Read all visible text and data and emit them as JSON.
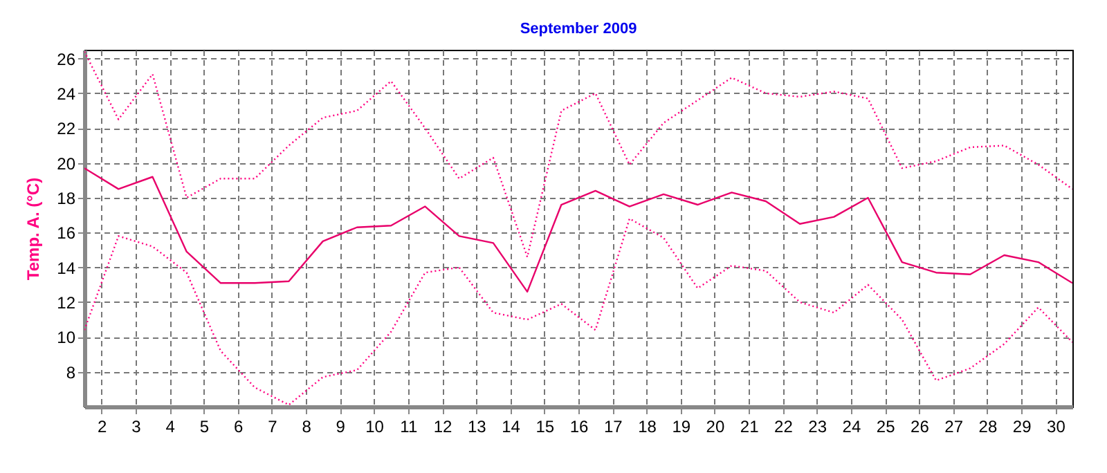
{
  "chart_data": {
    "type": "line",
    "title": "September 2009",
    "ylabel": "Temp. A. (°C)",
    "x": [
      1.5,
      2.5,
      3.5,
      4.5,
      5.5,
      6.5,
      7.5,
      8.5,
      9.5,
      10.5,
      11.5,
      12.5,
      13.5,
      14.5,
      15.5,
      16.5,
      17.5,
      18.5,
      19.5,
      20.5,
      21.5,
      22.5,
      23.5,
      24.5,
      25.5,
      26.5,
      27.5,
      28.5,
      29.5,
      30.5
    ],
    "series": [
      {
        "color": "#ff0080",
        "line_style": "dotted",
        "values": [
          26.4,
          22.5,
          25.1,
          18.0,
          19.1,
          19.1,
          21.0,
          22.6,
          23.0,
          24.7,
          22.0,
          19.1,
          20.3,
          14.6,
          23.0,
          24.0,
          19.9,
          22.3,
          23.6,
          24.9,
          24.0,
          23.8,
          24.1,
          23.7,
          19.7,
          20.1,
          20.9,
          21.0,
          19.9,
          18.5
        ]
      },
      {
        "color": "#e8006a",
        "line_style": "solid",
        "values": [
          19.7,
          18.5,
          19.2,
          14.9,
          13.1,
          13.1,
          13.2,
          15.5,
          16.3,
          16.4,
          17.5,
          15.8,
          15.4,
          12.6,
          17.6,
          18.4,
          17.5,
          18.2,
          17.6,
          18.3,
          17.8,
          16.5,
          16.9,
          18.0,
          14.3,
          13.7,
          13.6,
          14.7,
          14.3,
          13.1
        ]
      },
      {
        "color": "#ff0080",
        "line_style": "dotted",
        "values": [
          10.4,
          15.8,
          15.2,
          13.7,
          9.2,
          7.1,
          6.1,
          7.7,
          8.1,
          10.3,
          13.7,
          14.0,
          11.4,
          11.0,
          11.9,
          10.4,
          16.8,
          15.7,
          12.8,
          14.1,
          13.8,
          12.0,
          11.4,
          13.0,
          11.0,
          7.5,
          8.2,
          9.6,
          11.7,
          9.7
        ]
      }
    ],
    "xlim": [
      1.5,
      30.5
    ],
    "xticks": [
      2,
      3,
      4,
      5,
      6,
      7,
      8,
      9,
      10,
      11,
      12,
      13,
      14,
      15,
      16,
      17,
      18,
      19,
      20,
      21,
      22,
      23,
      24,
      25,
      26,
      27,
      28,
      29,
      30
    ],
    "ylim": [
      6,
      26.5
    ],
    "yticks": [
      8,
      10,
      12,
      14,
      16,
      18,
      20,
      22,
      24,
      26
    ],
    "grid": true,
    "marker": "none"
  }
}
